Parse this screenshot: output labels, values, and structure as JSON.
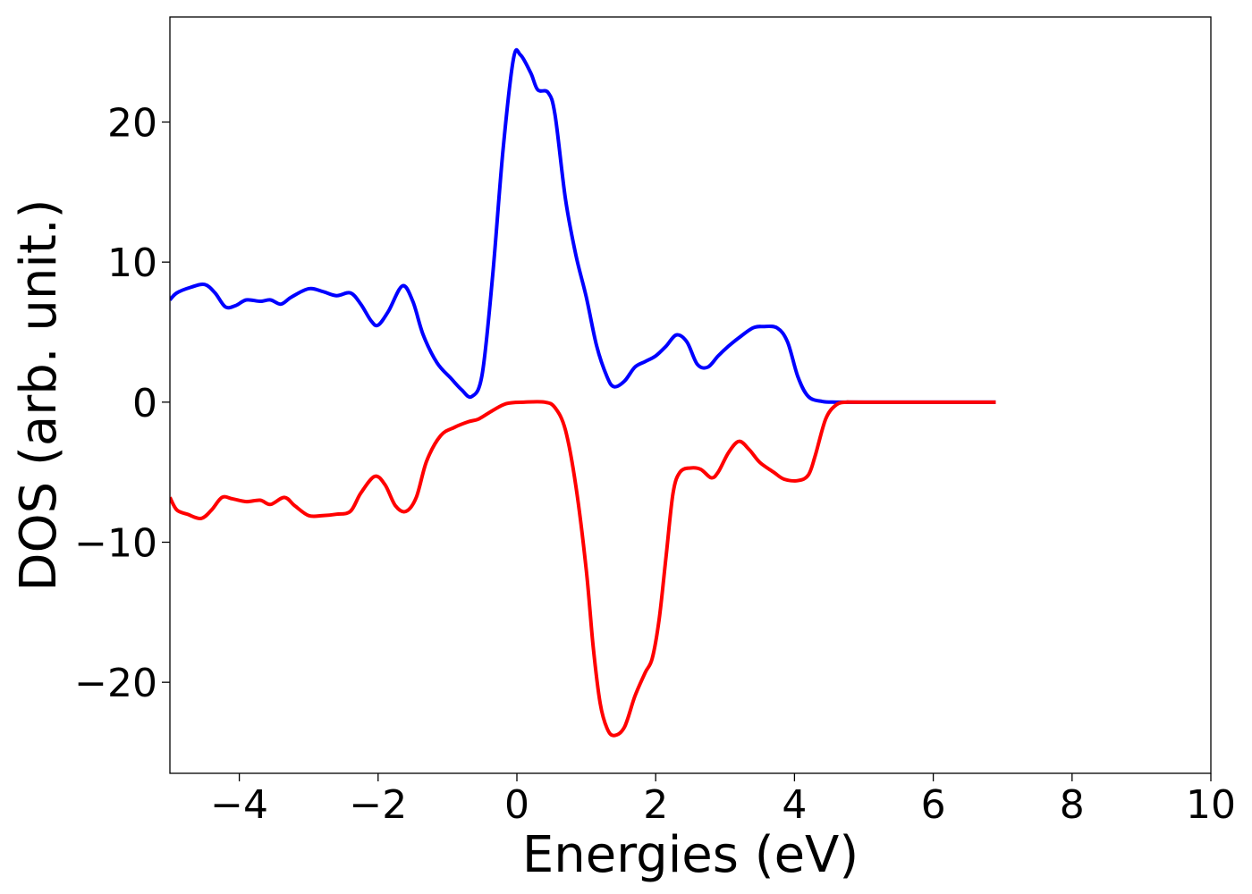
{
  "chart_data": {
    "type": "line",
    "title": "",
    "xlabel": "Energies (eV)",
    "ylabel": "DOS (arb. unit.)",
    "xlim": [
      -5,
      10
    ],
    "ylim": [
      -26.5,
      27.5
    ],
    "grid": false,
    "x_ticks": [
      -4,
      -2,
      0,
      2,
      4,
      6,
      8,
      10
    ],
    "x_tick_labels": [
      "−4",
      "−2",
      "0",
      "2",
      "4",
      "6",
      "8",
      "10"
    ],
    "y_ticks": [
      20,
      10,
      0,
      -10,
      -20
    ],
    "y_tick_labels": [
      "20",
      "10",
      "0",
      "−10",
      "−20"
    ],
    "series": [
      {
        "color": "#0000ff",
        "points": [
          [
            -5.0,
            7.3
          ],
          [
            -4.9,
            7.8
          ],
          [
            -4.7,
            8.2
          ],
          [
            -4.5,
            8.4
          ],
          [
            -4.35,
            7.8
          ],
          [
            -4.2,
            6.8
          ],
          [
            -4.05,
            6.9
          ],
          [
            -3.9,
            7.3
          ],
          [
            -3.7,
            7.2
          ],
          [
            -3.55,
            7.3
          ],
          [
            -3.4,
            7.0
          ],
          [
            -3.25,
            7.5
          ],
          [
            -3.0,
            8.1
          ],
          [
            -2.8,
            7.9
          ],
          [
            -2.6,
            7.6
          ],
          [
            -2.4,
            7.8
          ],
          [
            -2.25,
            7.0
          ],
          [
            -2.1,
            5.8
          ],
          [
            -2.0,
            5.5
          ],
          [
            -1.85,
            6.5
          ],
          [
            -1.65,
            8.3
          ],
          [
            -1.5,
            7.2
          ],
          [
            -1.35,
            4.8
          ],
          [
            -1.15,
            2.8
          ],
          [
            -0.95,
            1.7
          ],
          [
            -0.8,
            0.9
          ],
          [
            -0.65,
            0.4
          ],
          [
            -0.5,
            2.0
          ],
          [
            -0.35,
            9.0
          ],
          [
            -0.2,
            18.0
          ],
          [
            -0.05,
            24.5
          ],
          [
            0.05,
            24.8
          ],
          [
            0.2,
            23.5
          ],
          [
            0.3,
            22.3
          ],
          [
            0.45,
            22.1
          ],
          [
            0.55,
            20.5
          ],
          [
            0.7,
            14.5
          ],
          [
            0.85,
            10.5
          ],
          [
            1.0,
            7.5
          ],
          [
            1.15,
            4.0
          ],
          [
            1.3,
            1.8
          ],
          [
            1.4,
            1.1
          ],
          [
            1.55,
            1.5
          ],
          [
            1.7,
            2.5
          ],
          [
            1.85,
            2.9
          ],
          [
            2.0,
            3.3
          ],
          [
            2.15,
            4.0
          ],
          [
            2.3,
            4.8
          ],
          [
            2.45,
            4.3
          ],
          [
            2.6,
            2.7
          ],
          [
            2.75,
            2.5
          ],
          [
            2.9,
            3.3
          ],
          [
            3.05,
            4.0
          ],
          [
            3.2,
            4.6
          ],
          [
            3.4,
            5.3
          ],
          [
            3.55,
            5.4
          ],
          [
            3.75,
            5.3
          ],
          [
            3.9,
            4.3
          ],
          [
            4.05,
            1.8
          ],
          [
            4.2,
            0.4
          ],
          [
            4.4,
            0.05
          ],
          [
            4.6,
            0.0
          ],
          [
            5.0,
            0.0
          ],
          [
            6.9,
            0.0
          ]
        ]
      },
      {
        "color": "#ff0000",
        "points": [
          [
            -5.0,
            -6.8
          ],
          [
            -4.9,
            -7.7
          ],
          [
            -4.75,
            -8.0
          ],
          [
            -4.55,
            -8.3
          ],
          [
            -4.4,
            -7.7
          ],
          [
            -4.25,
            -6.8
          ],
          [
            -4.1,
            -6.9
          ],
          [
            -3.9,
            -7.1
          ],
          [
            -3.7,
            -7.0
          ],
          [
            -3.55,
            -7.3
          ],
          [
            -3.35,
            -6.8
          ],
          [
            -3.2,
            -7.4
          ],
          [
            -3.0,
            -8.1
          ],
          [
            -2.8,
            -8.1
          ],
          [
            -2.6,
            -8.0
          ],
          [
            -2.4,
            -7.8
          ],
          [
            -2.25,
            -6.5
          ],
          [
            -2.05,
            -5.3
          ],
          [
            -1.9,
            -5.9
          ],
          [
            -1.75,
            -7.4
          ],
          [
            -1.6,
            -7.8
          ],
          [
            -1.45,
            -6.8
          ],
          [
            -1.3,
            -4.2
          ],
          [
            -1.1,
            -2.4
          ],
          [
            -0.9,
            -1.8
          ],
          [
            -0.7,
            -1.4
          ],
          [
            -0.55,
            -1.2
          ],
          [
            -0.35,
            -0.6
          ],
          [
            -0.15,
            -0.1
          ],
          [
            0.1,
            0.0
          ],
          [
            0.4,
            0.0
          ],
          [
            0.55,
            -0.4
          ],
          [
            0.7,
            -2.0
          ],
          [
            0.85,
            -6.0
          ],
          [
            1.0,
            -12.0
          ],
          [
            1.1,
            -17.5
          ],
          [
            1.2,
            -21.5
          ],
          [
            1.3,
            -23.3
          ],
          [
            1.4,
            -23.8
          ],
          [
            1.55,
            -23.2
          ],
          [
            1.7,
            -21.0
          ],
          [
            1.85,
            -19.3
          ],
          [
            1.95,
            -18.3
          ],
          [
            2.05,
            -15.5
          ],
          [
            2.15,
            -11.0
          ],
          [
            2.25,
            -6.5
          ],
          [
            2.35,
            -5.0
          ],
          [
            2.5,
            -4.7
          ],
          [
            2.65,
            -4.8
          ],
          [
            2.8,
            -5.4
          ],
          [
            2.9,
            -5.0
          ],
          [
            3.05,
            -3.6
          ],
          [
            3.2,
            -2.8
          ],
          [
            3.35,
            -3.4
          ],
          [
            3.5,
            -4.3
          ],
          [
            3.7,
            -5.0
          ],
          [
            3.85,
            -5.5
          ],
          [
            4.05,
            -5.6
          ],
          [
            4.2,
            -5.2
          ],
          [
            4.3,
            -3.8
          ],
          [
            4.45,
            -1.2
          ],
          [
            4.6,
            -0.2
          ],
          [
            4.75,
            0.0
          ],
          [
            5.0,
            0.0
          ],
          [
            6.9,
            0.0
          ]
        ]
      }
    ]
  }
}
